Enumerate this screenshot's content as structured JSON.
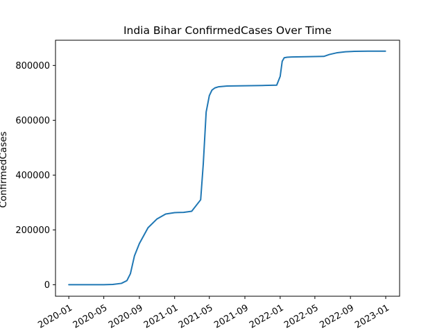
{
  "colors": {
    "line": "#1f77b4",
    "axis": "#000000",
    "background": "#ffffff"
  },
  "chart_data": {
    "type": "line",
    "title": "India Bihar ConfirmedCases Over Time",
    "xlabel": "",
    "ylabel": "ConfirmedCases",
    "x_ticks": [
      {
        "date": "2020-01",
        "label": "2020-01"
      },
      {
        "date": "2020-05",
        "label": "2020-05"
      },
      {
        "date": "2020-09",
        "label": "2020-09"
      },
      {
        "date": "2021-01",
        "label": "2021-01"
      },
      {
        "date": "2021-05",
        "label": "2021-05"
      },
      {
        "date": "2021-09",
        "label": "2021-09"
      },
      {
        "date": "2022-01",
        "label": "2022-01"
      },
      {
        "date": "2022-05",
        "label": "2022-05"
      },
      {
        "date": "2022-09",
        "label": "2022-09"
      },
      {
        "date": "2023-01",
        "label": "2023-01"
      }
    ],
    "y_ticks": [
      {
        "value": 0,
        "label": "0"
      },
      {
        "value": 200000,
        "label": "200000"
      },
      {
        "value": 400000,
        "label": "400000"
      },
      {
        "value": 600000,
        "label": "600000"
      },
      {
        "value": 800000,
        "label": "800000"
      }
    ],
    "xlim": [
      "2019-11-16",
      "2023-02-18"
    ],
    "ylim": [
      -42000,
      892000
    ],
    "series": [
      {
        "name": "ConfirmedCases",
        "x": [
          "2020-01-01",
          "2020-04-01",
          "2020-05-01",
          "2020-06-01",
          "2020-07-01",
          "2020-07-20",
          "2020-08-01",
          "2020-08-15",
          "2020-09-01",
          "2020-10-01",
          "2020-11-01",
          "2020-12-01",
          "2021-01-01",
          "2021-02-01",
          "2021-03-01",
          "2021-04-01",
          "2021-04-10",
          "2021-04-20",
          "2021-05-01",
          "2021-05-10",
          "2021-05-20",
          "2021-06-01",
          "2021-07-01",
          "2021-09-01",
          "2021-11-01",
          "2021-12-20",
          "2022-01-01",
          "2022-01-08",
          "2022-01-15",
          "2022-01-25",
          "2022-02-10",
          "2022-04-01",
          "2022-06-01",
          "2022-06-20",
          "2022-07-15",
          "2022-08-15",
          "2022-09-15",
          "2022-11-01",
          "2022-12-31"
        ],
        "values": [
          0,
          0,
          0,
          1000,
          5000,
          15000,
          40000,
          105000,
          150000,
          208000,
          240000,
          258000,
          263000,
          264000,
          268000,
          310000,
          440000,
          630000,
          690000,
          710000,
          718000,
          722000,
          725000,
          726000,
          727000,
          728000,
          760000,
          815000,
          828000,
          830000,
          831000,
          832000,
          833000,
          840000,
          846000,
          850000,
          851500,
          852000,
          852000
        ]
      }
    ]
  }
}
